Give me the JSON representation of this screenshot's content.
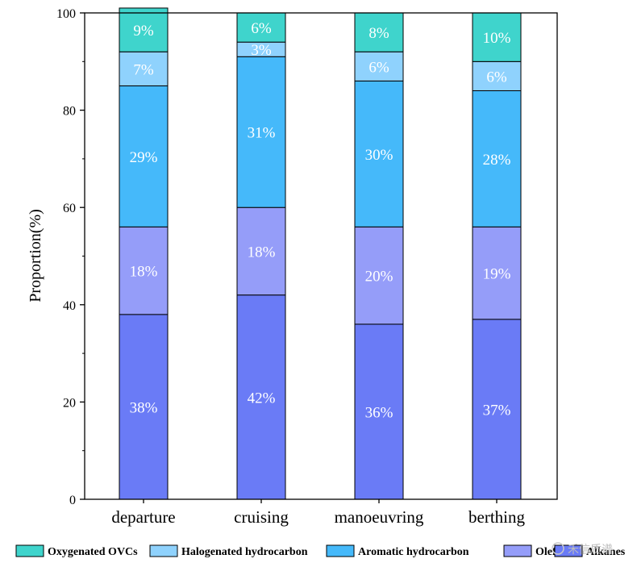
{
  "chart_data": {
    "type": "bar",
    "stacked": true,
    "categories": [
      "departure",
      "cruising",
      "manoeuvring",
      "berthing"
    ],
    "series": [
      {
        "name": "Alkanes",
        "values": [
          38,
          42,
          36,
          37
        ],
        "labels": [
          "38%",
          "42%",
          "36%",
          "37%"
        ],
        "color": "#6a7bf6"
      },
      {
        "name": "Olefin",
        "values": [
          18,
          18,
          20,
          19
        ],
        "labels": [
          "18%",
          "18%",
          "20%",
          "19%"
        ],
        "color": "#959df9"
      },
      {
        "name": "Aromatic hydrocarbon",
        "values": [
          29,
          31,
          30,
          28
        ],
        "labels": [
          "29%",
          "31%",
          "30%",
          "28%"
        ],
        "color": "#45b9fa"
      },
      {
        "name": "Halogenated hydrocarbon",
        "values": [
          7,
          3,
          6,
          6
        ],
        "labels": [
          "7%",
          "3%",
          "6%",
          "6%"
        ],
        "color": "#8fd2fd"
      },
      {
        "name": "Oxygenated OVCs",
        "values": [
          9,
          6,
          8,
          10
        ],
        "labels": [
          "9%",
          "6%",
          "8%",
          "10%"
        ],
        "color": "#3fd4cc"
      }
    ],
    "legend_order": [
      "Oxygenated OVCs",
      "Halogenated hydrocarbon",
      "Aromatic hydrocarbon",
      "Olefin",
      "Alkanes"
    ],
    "legend_display": [
      "Oxygenated OVCs",
      "Halogenated hydrocarbon",
      "Aromatic hydrocarbon",
      "Olefi",
      "Alkanes"
    ],
    "legend_position": "bottom",
    "ylabel": "Proportion(%)",
    "xlabel": "",
    "ylim": [
      0,
      100
    ],
    "yticks": [
      0,
      20,
      40,
      60,
      80,
      100
    ],
    "ytick_labels": [
      "0",
      "20",
      "40",
      "60",
      "80",
      "100"
    ],
    "grid": false
  },
  "watermark": {
    "text": "禾信质谱"
  }
}
